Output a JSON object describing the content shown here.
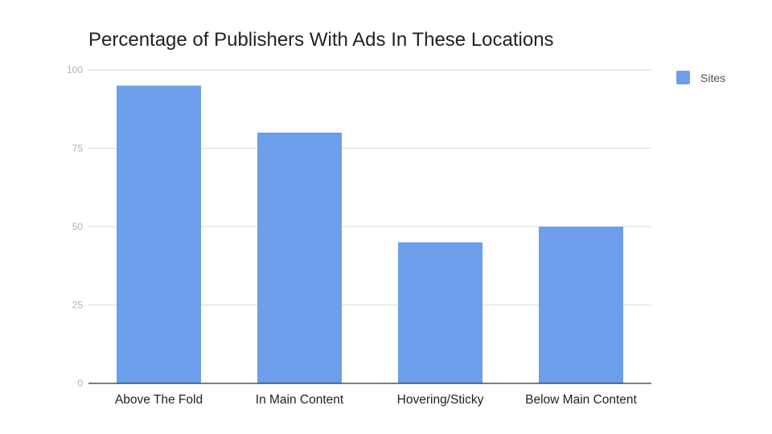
{
  "chart_data": {
    "type": "bar",
    "title": "Percentage of Publishers With Ads In These Locations",
    "xlabel": "",
    "ylabel": "",
    "categories": [
      "Above The Fold",
      "In Main Content",
      "Hovering/Sticky",
      "Below Main Content"
    ],
    "series": [
      {
        "name": "Sites",
        "values": [
          95,
          80,
          45,
          50
        ],
        "color": "#6d9eeb"
      }
    ],
    "ylim": [
      0,
      100
    ],
    "yticks": [
      0,
      25,
      50,
      75,
      100
    ],
    "grid": true,
    "legend_position": "right",
    "colors": {
      "grid": "#d9d9d9",
      "axis": "#333333"
    }
  }
}
